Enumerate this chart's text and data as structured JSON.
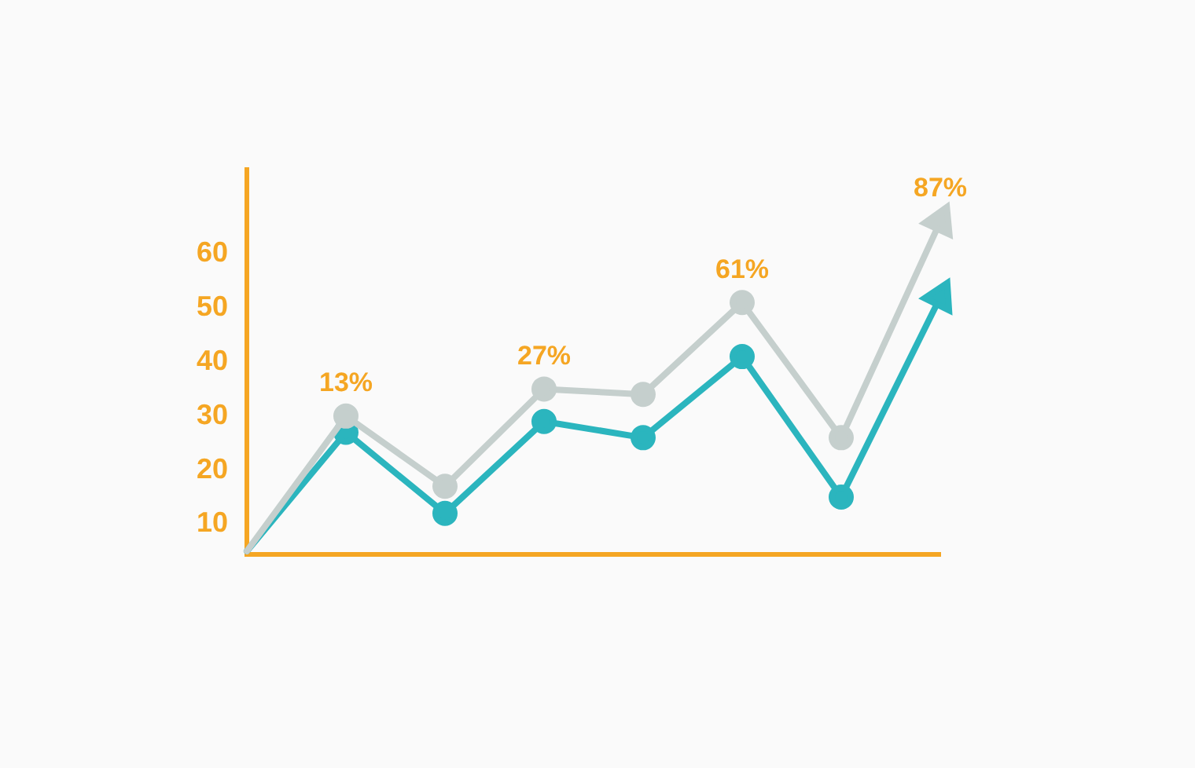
{
  "chart_data": {
    "type": "line",
    "categories": [
      null,
      null,
      null,
      null,
      null,
      null,
      null,
      null
    ],
    "ylim": [
      4.4,
      75.6
    ],
    "yticks": [
      10,
      20,
      30,
      40,
      50,
      60
    ],
    "tick_labels": "y",
    "grid": false,
    "legend": false,
    "marker": "circle",
    "line_style": "solid",
    "series": [
      {
        "color": "#c5cfcd",
        "values": [
          5,
          30,
          17,
          35,
          34,
          51,
          26,
          66
        ]
      },
      {
        "color": "#2bb5be",
        "values": [
          5,
          27,
          12,
          29,
          26,
          41,
          15,
          52
        ]
      }
    ],
    "annotations": [
      "13%",
      "27%",
      "61%",
      "87%"
    ]
  }
}
